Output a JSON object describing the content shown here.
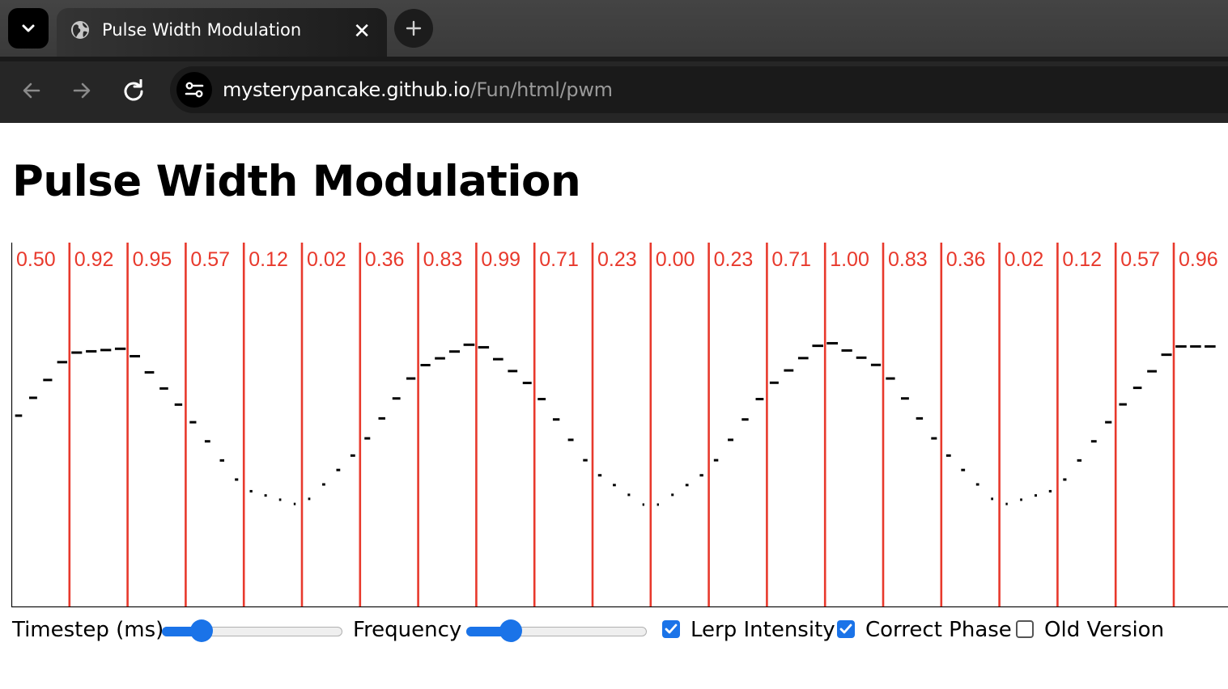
{
  "browser": {
    "tab_title": "Pulse Width Modulation",
    "url_host": "mysterypancake.github.io",
    "url_path": "/Fun/html/pwm"
  },
  "page": {
    "title": "Pulse Width Modulation"
  },
  "visualization": {
    "divider_color": "#e8392c",
    "label_color": "#e8392c",
    "bar_color": "#000000",
    "window_values": [
      "0.50",
      "0.92",
      "0.95",
      "0.57",
      "0.12",
      "0.02",
      "0.36",
      "0.83",
      "0.99",
      "0.71",
      "0.23",
      "0.00",
      "0.23",
      "0.71",
      "1.00",
      "0.83",
      "0.36",
      "0.02",
      "0.12",
      "0.57",
      "0.96"
    ]
  },
  "controls": {
    "timestep_label": "Timestep (ms)",
    "timestep_value": 0.18,
    "frequency_label": "Frequency",
    "frequency_value": 0.21,
    "lerp_label": "Lerp Intensity",
    "lerp_checked": true,
    "phase_label": "Correct Phase",
    "phase_checked": true,
    "old_label": "Old Version",
    "old_checked": false
  },
  "colors": {
    "accent": "#1a73e8",
    "chrome_dark": "#262626"
  },
  "icons": {
    "tab_menu": "chevron-down-icon",
    "tab_favicon": "globe-icon",
    "tab_close": "close-icon",
    "new_tab": "plus-icon",
    "back": "arrow-left-icon",
    "forward": "arrow-right-icon",
    "reload": "reload-icon",
    "site_info": "tune-icon",
    "checkbox": "checkmark-icon"
  }
}
